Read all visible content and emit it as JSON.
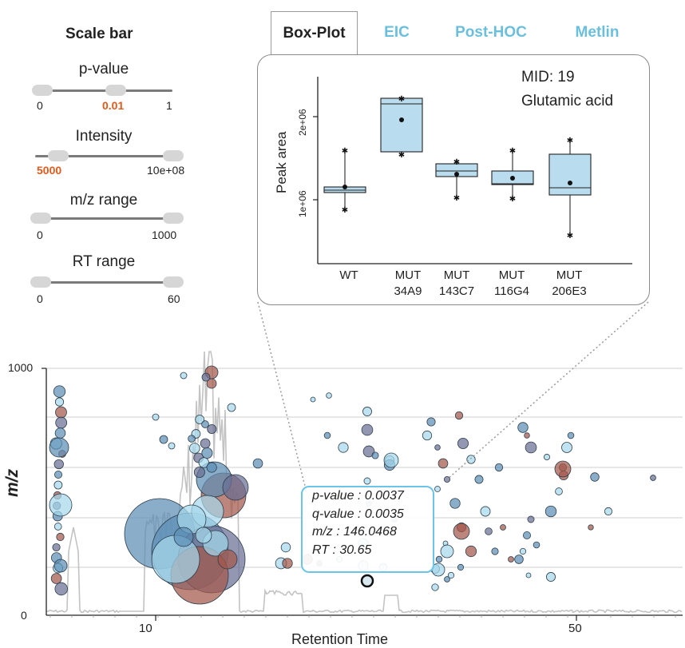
{
  "scale_bar": {
    "title": "Scale bar",
    "sliders": [
      {
        "label": "p-value",
        "min_label": "0",
        "value_label": "0.01",
        "max_label": "1"
      },
      {
        "label": "Intensity",
        "value_label": "5000",
        "max_label": "10e+08"
      },
      {
        "label": "m/z range",
        "min_label": "0",
        "max_label": "1000"
      },
      {
        "label": "RT range",
        "min_label": "0",
        "max_label": "60"
      }
    ]
  },
  "tabs": [
    {
      "label": "Box-Plot",
      "active": true
    },
    {
      "label": "EIC",
      "active": false
    },
    {
      "label": "Post-HOC",
      "active": false
    },
    {
      "label": "Metlin",
      "active": false
    }
  ],
  "boxplot": {
    "mid_label": "MID: 19",
    "compound": "Glutamic acid",
    "ylabel": "Peak area",
    "yticks": [
      "1e+06",
      "2e+06"
    ],
    "groups": [
      {
        "line1": "WT",
        "line2": ""
      },
      {
        "line1": "MUT",
        "line2": "34A9"
      },
      {
        "line1": "MUT",
        "line2": "143C7"
      },
      {
        "line1": "MUT",
        "line2": "116G4"
      },
      {
        "line1": "MUT",
        "line2": "206E3"
      }
    ]
  },
  "chart_data": {
    "type": "scatter",
    "xlabel": "Retention Time",
    "ylabel": "m/z",
    "yticks": [
      "0",
      "1000"
    ],
    "xticks": [
      "10",
      "50"
    ],
    "xlim": [
      5,
      60
    ],
    "ylim": [
      0,
      1000
    ],
    "series_colors": {
      "up": "#a3574b",
      "down": "#5d8fb6",
      "light": "#a6d8ec",
      "mixed": "#6a6f93"
    }
  },
  "tooltip": {
    "p_value": "p-value : 0.0037",
    "q_value": "q-value : 0.0035",
    "mz": "m/z : 146.0468",
    "rt": "RT : 30.65"
  }
}
